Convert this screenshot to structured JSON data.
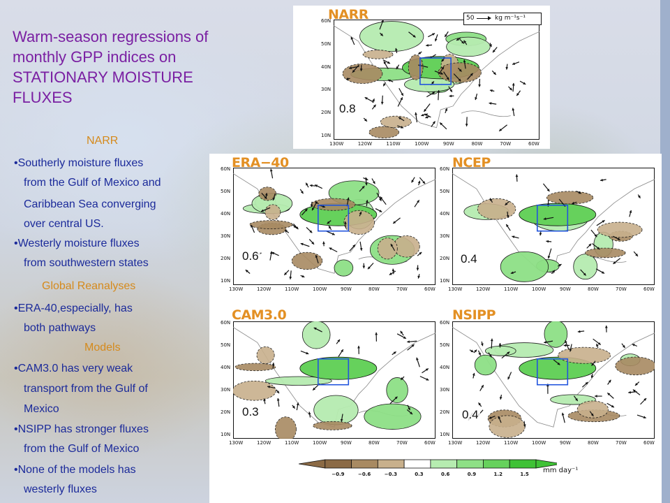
{
  "title": "Warm-season regressions of monthly GPP indices on STATIONARY MOISTURE FLUXES",
  "sections": {
    "narr_heading": "NARR",
    "narr_bullets": [
      "•Southerly moisture fluxes",
      "from the Gulf of Mexico and",
      "Caribbean Sea converging",
      "over central US.",
      "•Westerly moisture fluxes",
      "from southwestern states"
    ],
    "global_heading": "Global Reanalyses",
    "global_bullets": [
      "•ERA-40,especially, has",
      "both pathways"
    ],
    "models_heading": "Models",
    "models_bullets": [
      "•CAM3.0 has very weak",
      "transport from the Gulf of",
      "Mexico",
      "•NSIPP has stronger fluxes",
      "from the Gulf of Mexico",
      "•None of the models has",
      "westerly fluxes"
    ]
  },
  "panels": [
    {
      "title": "NARR",
      "correlation": "0.8"
    },
    {
      "title": "ERA−40",
      "correlation": "0.6"
    },
    {
      "title": "NCEP",
      "correlation": "0.4"
    },
    {
      "title": "CAM3.0",
      "correlation": "0.3"
    },
    {
      "title": "NSIPP",
      "correlation": "0.4"
    }
  ],
  "axes": {
    "lat_labels": [
      "60N",
      "50N",
      "40N",
      "30N",
      "20N",
      "10N"
    ],
    "lon_labels": [
      "130W",
      "120W",
      "110W",
      "100W",
      "90W",
      "80W",
      "70W",
      "60W"
    ]
  },
  "reference_vector": {
    "value": "50",
    "units": "kg m⁻¹s⁻¹"
  },
  "colorbar": {
    "ticks": [
      "−0.9",
      "−0.6",
      "−0.3",
      "0.3",
      "0.6",
      "0.9",
      "1.2",
      "1.5"
    ],
    "units": "mm day⁻¹",
    "colors": [
      "#8b6a45",
      "#a88a62",
      "#c8b08c",
      "#ffffff",
      "#b6ecb0",
      "#8ee086",
      "#66d15c",
      "#3fc236"
    ]
  }
}
